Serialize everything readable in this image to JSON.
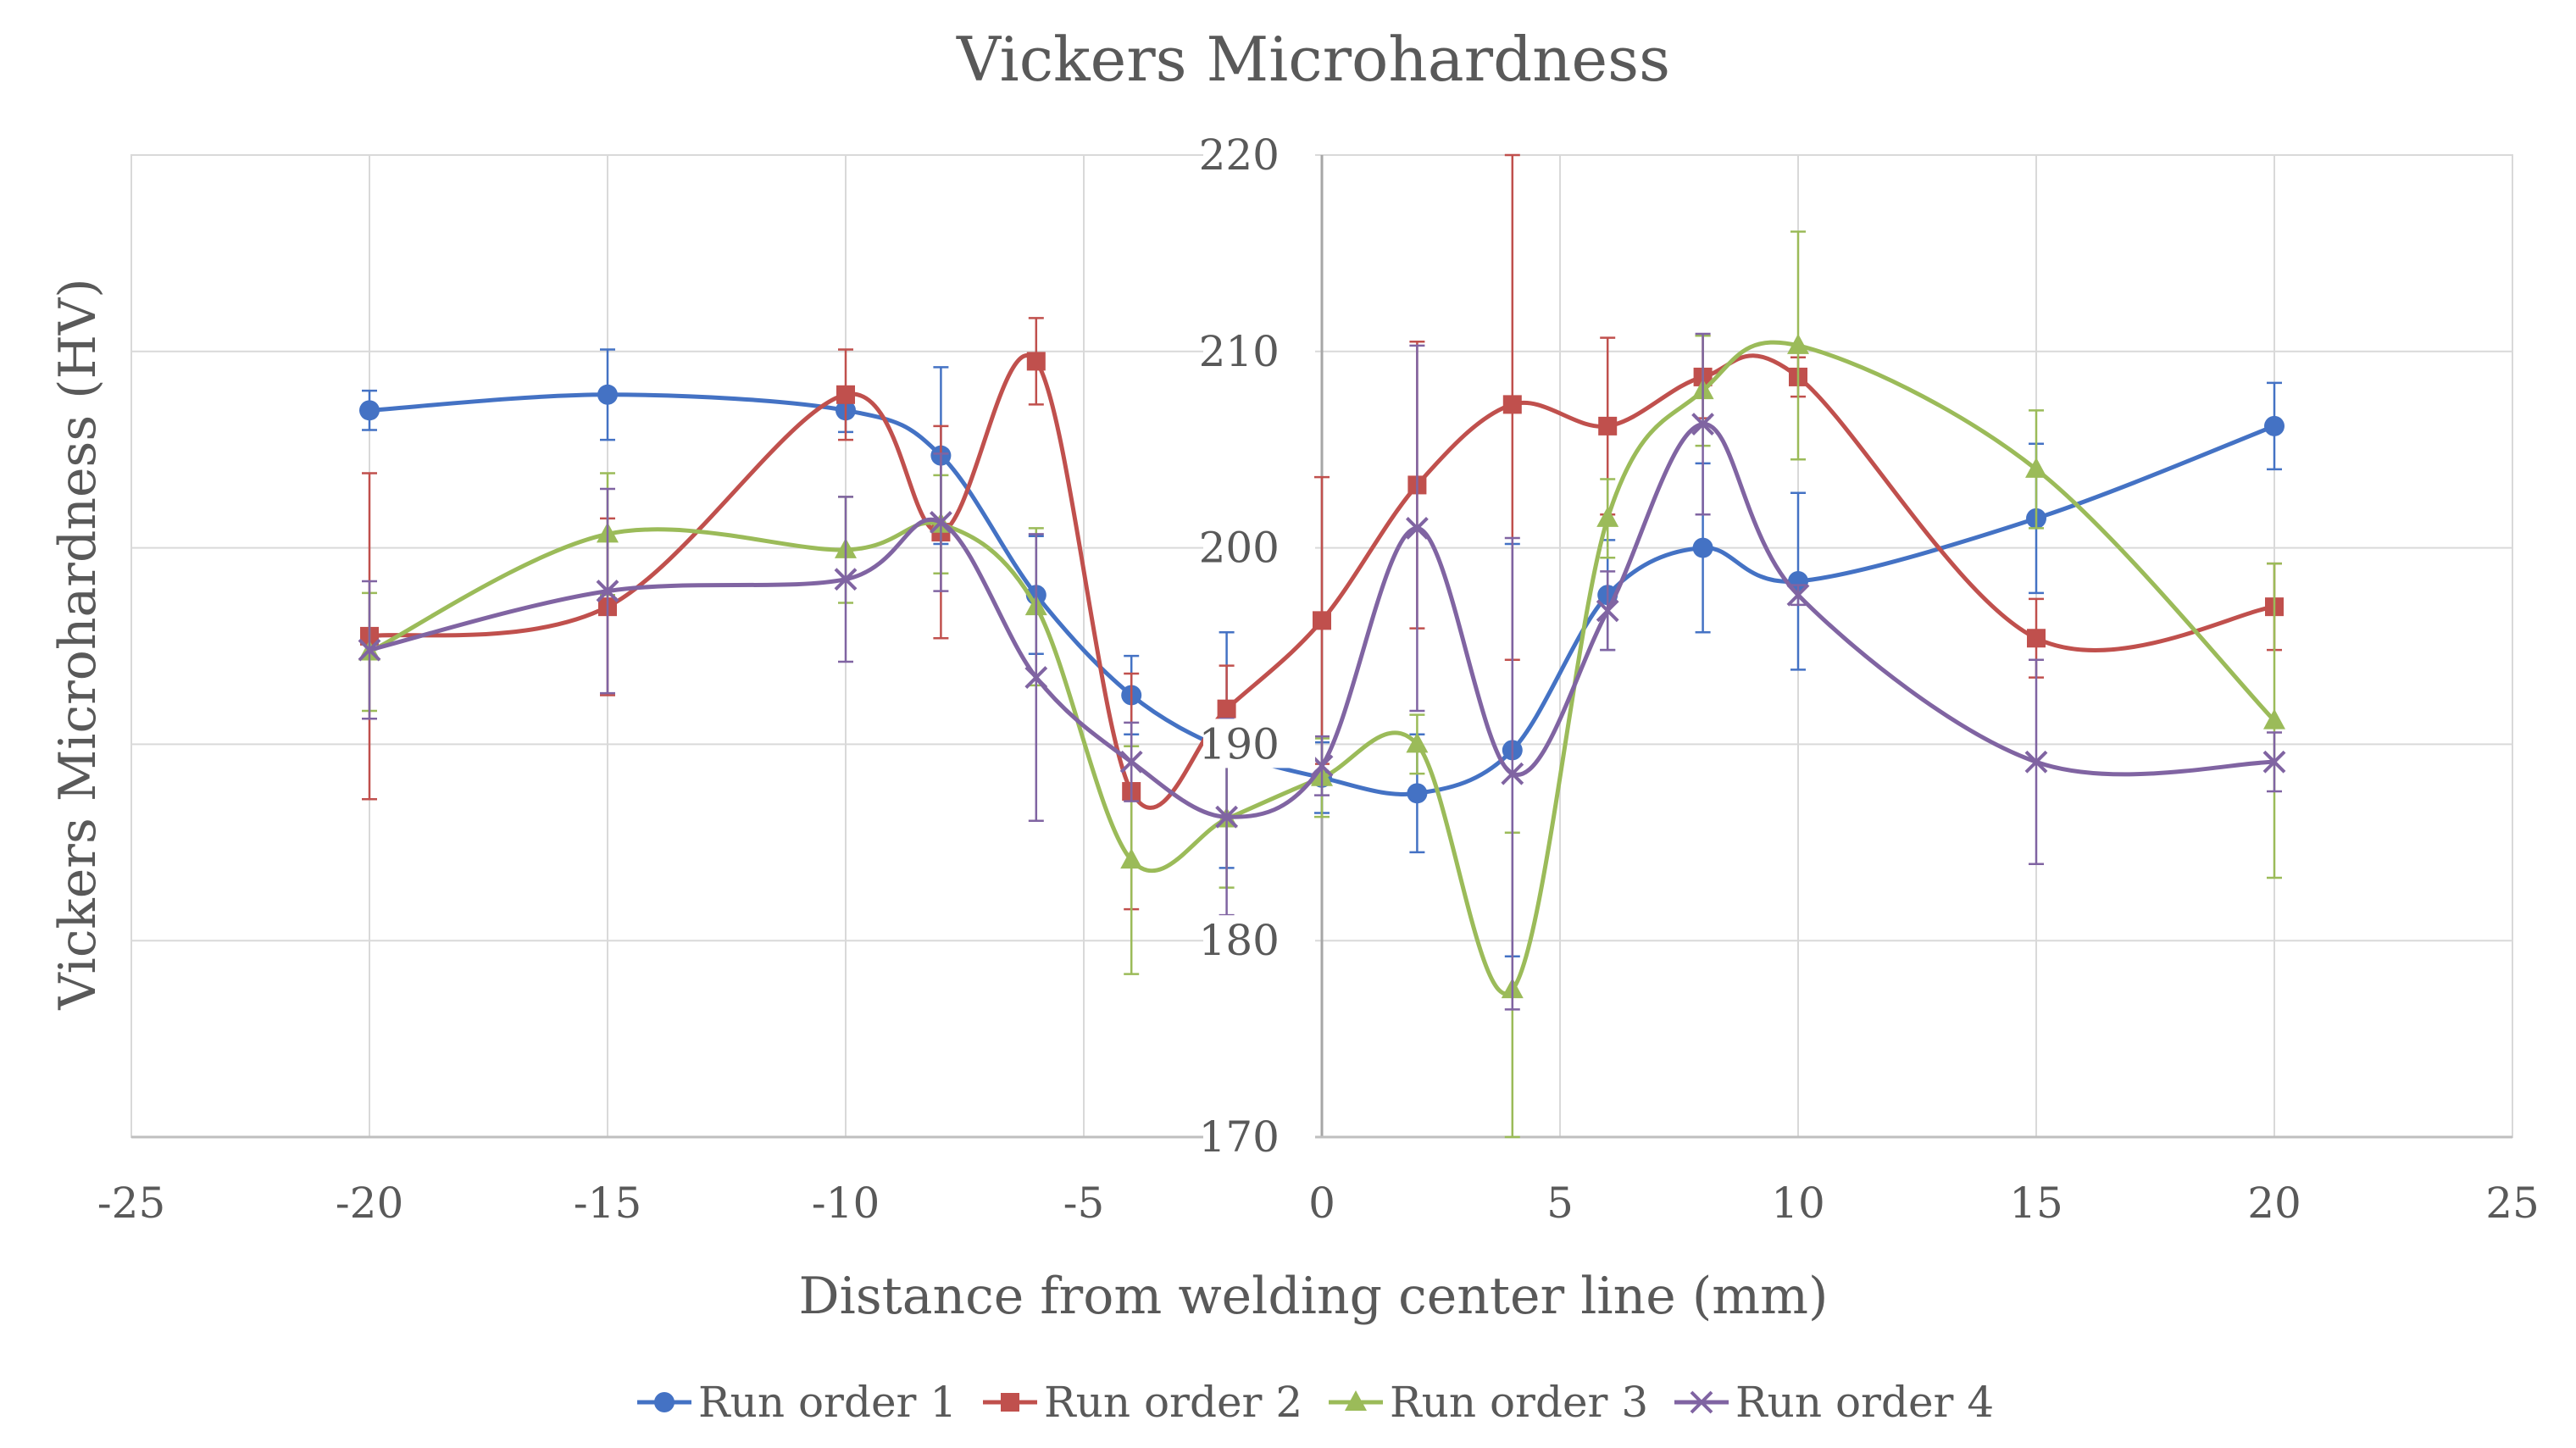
{
  "chart_data": {
    "type": "line",
    "title": "Vickers Microhardness",
    "xlabel": "Distance from welding center line (mm)",
    "ylabel": "Vickers Microhardness (HV)",
    "xlim": [
      -25,
      25
    ],
    "ylim": [
      170,
      220
    ],
    "x_ticks": [
      "-25",
      "-20",
      "-15",
      "-10",
      "-5",
      "0",
      "5",
      "10",
      "15",
      "20",
      "25"
    ],
    "y_ticks": [
      "170",
      "180",
      "190",
      "200",
      "210",
      "220"
    ],
    "x": [
      -20,
      -15,
      -10,
      -8,
      -6,
      -4,
      -2,
      0,
      2,
      4,
      6,
      8,
      10,
      15,
      20
    ],
    "series": [
      {
        "name": "Run order 1",
        "color": "#4472C4",
        "marker": "circle",
        "values": [
          207.0,
          207.8,
          207.0,
          204.7,
          197.6,
          192.5,
          189.7,
          188.3,
          187.5,
          189.7,
          197.6,
          200.0,
          198.3,
          201.5,
          206.2
        ],
        "err": [
          1.0,
          2.3,
          1.1,
          4.5,
          3.0,
          2.0,
          6.0,
          1.8,
          3.0,
          10.5,
          2.8,
          4.3,
          4.5,
          3.8,
          2.2
        ]
      },
      {
        "name": "Run order 2",
        "color": "#C0504D",
        "marker": "square",
        "values": [
          195.5,
          197.0,
          207.8,
          200.8,
          209.5,
          187.6,
          191.8,
          196.3,
          203.2,
          207.3,
          206.2,
          208.7,
          208.7,
          195.4,
          197.0
        ],
        "err": [
          8.3,
          4.5,
          2.3,
          5.4,
          2.2,
          6.0,
          2.2,
          7.3,
          7.3,
          13.0,
          4.5,
          2.1,
          1.0,
          2.0,
          2.2
        ]
      },
      {
        "name": "Run order 3",
        "color": "#9BBB59",
        "marker": "triangle",
        "values": [
          194.7,
          200.7,
          199.9,
          201.2,
          197.0,
          184.1,
          186.2,
          188.3,
          190.0,
          177.5,
          201.5,
          208.0,
          210.3,
          204.0,
          191.2
        ],
        "err": [
          3.0,
          3.1,
          2.7,
          2.5,
          4.0,
          5.8,
          3.5,
          2.0,
          1.5,
          8.0,
          2.0,
          2.8,
          5.8,
          3.0,
          8.0
        ]
      },
      {
        "name": "Run order 4",
        "color": "#8064A2",
        "marker": "x",
        "values": [
          194.8,
          197.8,
          198.4,
          201.3,
          193.4,
          189.1,
          186.3,
          188.9,
          201.0,
          188.5,
          196.8,
          206.3,
          197.6,
          189.1,
          189.1
        ],
        "err": [
          3.5,
          5.2,
          4.2,
          3.5,
          7.3,
          2.0,
          5.0,
          1.5,
          9.3,
          12.0,
          2.0,
          4.6,
          0.5,
          5.2,
          1.5
        ]
      }
    ]
  }
}
